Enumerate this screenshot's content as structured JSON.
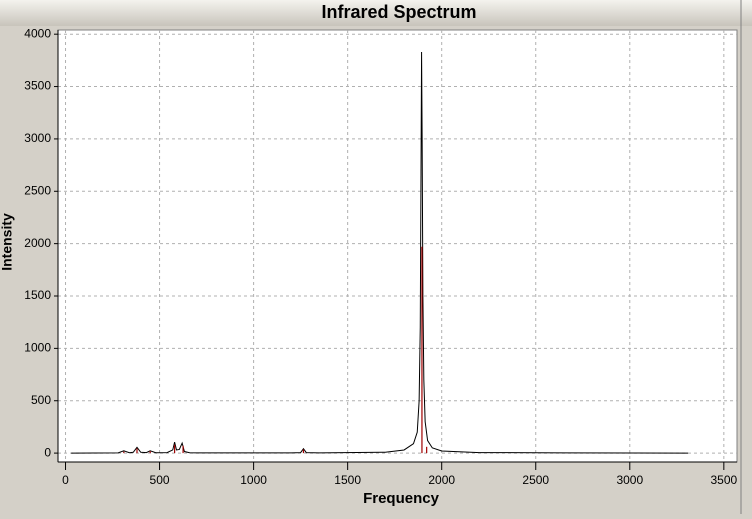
{
  "chart_data": {
    "type": "line",
    "title": "Infrared Spectrum",
    "x_label": "Frequency",
    "y_label": "Intensity",
    "xlim": [
      -40,
      3570
    ],
    "ylim": [
      -85,
      4040
    ],
    "xticks": [
      0,
      500,
      1000,
      1500,
      2000,
      2500,
      3000,
      3500
    ],
    "yticks": [
      0,
      500,
      1000,
      1500,
      2000,
      2500,
      3000,
      3500,
      4000
    ],
    "grid": true,
    "series": [
      {
        "type": "line",
        "color": "#000000",
        "x": [
          30,
          280,
          310,
          340,
          360,
          380,
          400,
          430,
          450,
          480,
          540,
          570,
          580,
          590,
          605,
          620,
          632,
          660,
          700,
          1200,
          1250,
          1265,
          1280,
          1350,
          1700,
          1800,
          1850,
          1870,
          1880,
          1886,
          1890,
          1893,
          1896,
          1900,
          1905,
          1912,
          1925,
          1950,
          2000,
          2200,
          2650,
          3310
        ],
        "values": [
          0,
          2,
          22,
          3,
          8,
          55,
          8,
          5,
          22,
          3,
          5,
          30,
          105,
          30,
          35,
          95,
          15,
          3,
          2,
          2,
          5,
          42,
          5,
          2,
          8,
          30,
          90,
          200,
          500,
          1200,
          2700,
          3830,
          3000,
          1500,
          700,
          300,
          120,
          50,
          20,
          5,
          2,
          0
        ]
      },
      {
        "type": "stem",
        "color": "#a00000",
        "x": [
          310,
          380,
          450,
          580,
          625,
          1265,
          1895,
          1920
        ],
        "values": [
          15,
          45,
          20,
          80,
          70,
          35,
          1970,
          60
        ]
      }
    ]
  }
}
